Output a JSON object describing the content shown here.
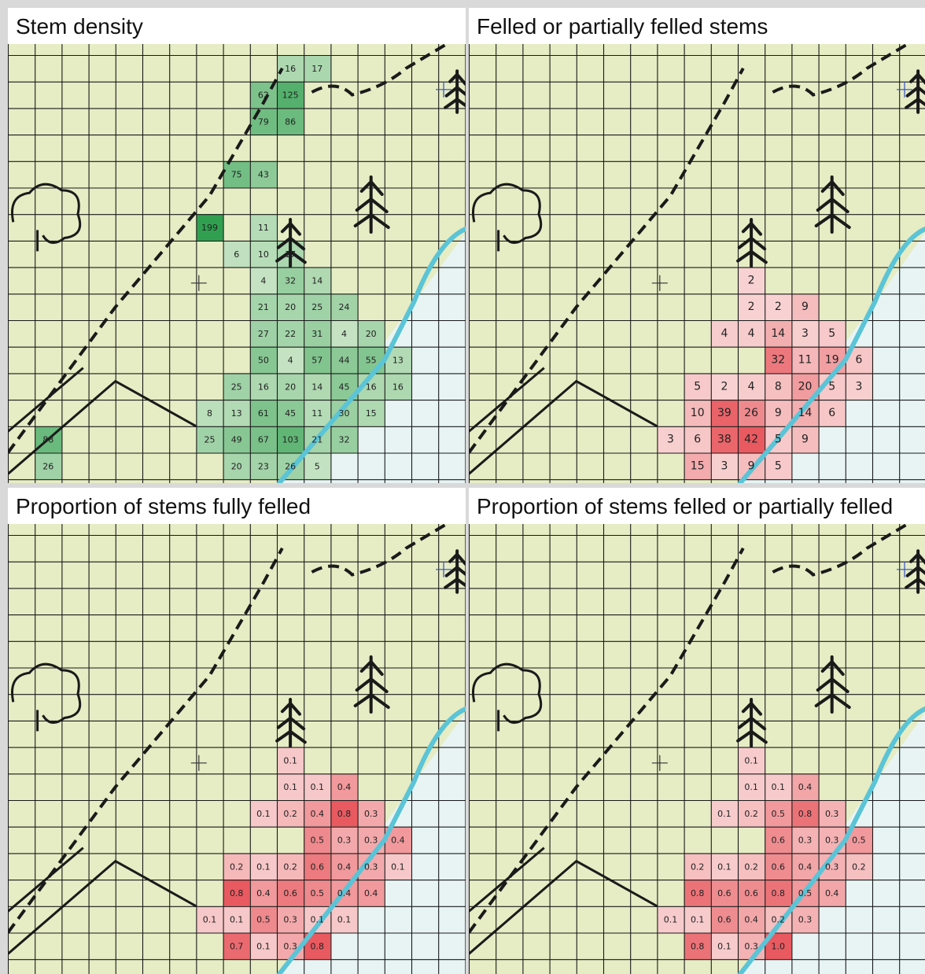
{
  "colors": {
    "map_bg": "#e6ecc4",
    "water": "#e8f4f4",
    "shore": "#5bc4d6",
    "grid": "#1a1a1a",
    "ink": "#1a1a1a"
  },
  "chart_data": [
    {
      "type": "heatmap",
      "title": "Stem density",
      "color_scheme": "green",
      "rows": 16,
      "cols": 17,
      "cells": [
        {
          "r": 0,
          "c": 10,
          "v": "16"
        },
        {
          "r": 0,
          "c": 11,
          "v": "17"
        },
        {
          "r": 1,
          "c": 9,
          "v": "62"
        },
        {
          "r": 1,
          "c": 10,
          "v": "125"
        },
        {
          "r": 2,
          "c": 9,
          "v": "79"
        },
        {
          "r": 2,
          "c": 10,
          "v": "86"
        },
        {
          "r": 4,
          "c": 8,
          "v": "75"
        },
        {
          "r": 4,
          "c": 9,
          "v": "43"
        },
        {
          "r": 6,
          "c": 7,
          "v": "199"
        },
        {
          "r": 6,
          "c": 9,
          "v": "11"
        },
        {
          "r": 7,
          "c": 8,
          "v": "6"
        },
        {
          "r": 7,
          "c": 9,
          "v": "10"
        },
        {
          "r": 7,
          "c": 10,
          "v": "17"
        },
        {
          "r": 8,
          "c": 9,
          "v": "4"
        },
        {
          "r": 8,
          "c": 10,
          "v": "32"
        },
        {
          "r": 8,
          "c": 11,
          "v": "14"
        },
        {
          "r": 9,
          "c": 9,
          "v": "21"
        },
        {
          "r": 9,
          "c": 10,
          "v": "20"
        },
        {
          "r": 9,
          "c": 11,
          "v": "25"
        },
        {
          "r": 9,
          "c": 12,
          "v": "24"
        },
        {
          "r": 10,
          "c": 9,
          "v": "27"
        },
        {
          "r": 10,
          "c": 10,
          "v": "22"
        },
        {
          "r": 10,
          "c": 11,
          "v": "31"
        },
        {
          "r": 10,
          "c": 12,
          "v": "4"
        },
        {
          "r": 10,
          "c": 13,
          "v": "20"
        },
        {
          "r": 11,
          "c": 9,
          "v": "50"
        },
        {
          "r": 11,
          "c": 10,
          "v": "4"
        },
        {
          "r": 11,
          "c": 11,
          "v": "57"
        },
        {
          "r": 11,
          "c": 12,
          "v": "44"
        },
        {
          "r": 11,
          "c": 13,
          "v": "55"
        },
        {
          "r": 11,
          "c": 14,
          "v": "13"
        },
        {
          "r": 12,
          "c": 8,
          "v": "25"
        },
        {
          "r": 12,
          "c": 9,
          "v": "16"
        },
        {
          "r": 12,
          "c": 10,
          "v": "20"
        },
        {
          "r": 12,
          "c": 11,
          "v": "14"
        },
        {
          "r": 12,
          "c": 12,
          "v": "45"
        },
        {
          "r": 12,
          "c": 13,
          "v": "16"
        },
        {
          "r": 12,
          "c": 14,
          "v": "16"
        },
        {
          "r": 13,
          "c": 7,
          "v": "8"
        },
        {
          "r": 13,
          "c": 8,
          "v": "13"
        },
        {
          "r": 13,
          "c": 9,
          "v": "61"
        },
        {
          "r": 13,
          "c": 10,
          "v": "45"
        },
        {
          "r": 13,
          "c": 11,
          "v": "11"
        },
        {
          "r": 13,
          "c": 12,
          "v": "30"
        },
        {
          "r": 13,
          "c": 13,
          "v": "15"
        },
        {
          "r": 14,
          "c": 1,
          "v": "88"
        },
        {
          "r": 14,
          "c": 7,
          "v": "25"
        },
        {
          "r": 14,
          "c": 8,
          "v": "49"
        },
        {
          "r": 14,
          "c": 9,
          "v": "67"
        },
        {
          "r": 14,
          "c": 10,
          "v": "103"
        },
        {
          "r": 14,
          "c": 11,
          "v": "21"
        },
        {
          "r": 14,
          "c": 12,
          "v": "32"
        },
        {
          "r": 15,
          "c": 1,
          "v": "26"
        },
        {
          "r": 15,
          "c": 8,
          "v": "20"
        },
        {
          "r": 15,
          "c": 9,
          "v": "23"
        },
        {
          "r": 15,
          "c": 10,
          "v": "26"
        },
        {
          "r": 15,
          "c": 11,
          "v": "5"
        }
      ]
    },
    {
      "type": "heatmap",
      "title": "Felled or partially felled stems",
      "color_scheme": "red",
      "rows": 16,
      "cols": 17,
      "cells": [
        {
          "r": 8,
          "c": 10,
          "v": "2"
        },
        {
          "r": 9,
          "c": 10,
          "v": "2"
        },
        {
          "r": 9,
          "c": 11,
          "v": "2"
        },
        {
          "r": 9,
          "c": 12,
          "v": "9"
        },
        {
          "r": 10,
          "c": 9,
          "v": "4"
        },
        {
          "r": 10,
          "c": 10,
          "v": "4"
        },
        {
          "r": 10,
          "c": 11,
          "v": "14"
        },
        {
          "r": 10,
          "c": 12,
          "v": "3"
        },
        {
          "r": 10,
          "c": 13,
          "v": "5"
        },
        {
          "r": 11,
          "c": 11,
          "v": "32"
        },
        {
          "r": 11,
          "c": 12,
          "v": "11"
        },
        {
          "r": 11,
          "c": 13,
          "v": "19"
        },
        {
          "r": 11,
          "c": 14,
          "v": "6"
        },
        {
          "r": 12,
          "c": 8,
          "v": "5"
        },
        {
          "r": 12,
          "c": 9,
          "v": "2"
        },
        {
          "r": 12,
          "c": 10,
          "v": "4"
        },
        {
          "r": 12,
          "c": 11,
          "v": "8"
        },
        {
          "r": 12,
          "c": 12,
          "v": "20"
        },
        {
          "r": 12,
          "c": 13,
          "v": "5"
        },
        {
          "r": 12,
          "c": 14,
          "v": "3"
        },
        {
          "r": 13,
          "c": 8,
          "v": "10"
        },
        {
          "r": 13,
          "c": 9,
          "v": "39"
        },
        {
          "r": 13,
          "c": 10,
          "v": "26"
        },
        {
          "r": 13,
          "c": 11,
          "v": "9"
        },
        {
          "r": 13,
          "c": 12,
          "v": "14"
        },
        {
          "r": 13,
          "c": 13,
          "v": "6"
        },
        {
          "r": 14,
          "c": 7,
          "v": "3"
        },
        {
          "r": 14,
          "c": 8,
          "v": "6"
        },
        {
          "r": 14,
          "c": 9,
          "v": "38"
        },
        {
          "r": 14,
          "c": 10,
          "v": "42"
        },
        {
          "r": 14,
          "c": 11,
          "v": "5"
        },
        {
          "r": 14,
          "c": 12,
          "v": "9"
        },
        {
          "r": 15,
          "c": 8,
          "v": "15"
        },
        {
          "r": 15,
          "c": 9,
          "v": "3"
        },
        {
          "r": 15,
          "c": 10,
          "v": "9"
        },
        {
          "r": 15,
          "c": 11,
          "v": "5"
        }
      ]
    },
    {
      "type": "heatmap",
      "title": "Proportion of stems fully felled",
      "color_scheme": "red",
      "rows": 16,
      "cols": 17,
      "cells": [
        {
          "r": 8,
          "c": 10,
          "v": "0.1"
        },
        {
          "r": 9,
          "c": 10,
          "v": "0.1"
        },
        {
          "r": 9,
          "c": 11,
          "v": "0.1"
        },
        {
          "r": 9,
          "c": 12,
          "v": "0.4"
        },
        {
          "r": 10,
          "c": 9,
          "v": "0.1"
        },
        {
          "r": 10,
          "c": 10,
          "v": "0.2"
        },
        {
          "r": 10,
          "c": 11,
          "v": "0.4"
        },
        {
          "r": 10,
          "c": 12,
          "v": "0.8"
        },
        {
          "r": 10,
          "c": 13,
          "v": "0.3"
        },
        {
          "r": 11,
          "c": 11,
          "v": "0.5"
        },
        {
          "r": 11,
          "c": 12,
          "v": "0.3"
        },
        {
          "r": 11,
          "c": 13,
          "v": "0.3"
        },
        {
          "r": 11,
          "c": 14,
          "v": "0.4"
        },
        {
          "r": 12,
          "c": 8,
          "v": "0.2"
        },
        {
          "r": 12,
          "c": 9,
          "v": "0.1"
        },
        {
          "r": 12,
          "c": 10,
          "v": "0.2"
        },
        {
          "r": 12,
          "c": 11,
          "v": "0.6"
        },
        {
          "r": 12,
          "c": 12,
          "v": "0.4"
        },
        {
          "r": 12,
          "c": 13,
          "v": "0.3"
        },
        {
          "r": 12,
          "c": 14,
          "v": "0.1"
        },
        {
          "r": 13,
          "c": 8,
          "v": "0.8"
        },
        {
          "r": 13,
          "c": 9,
          "v": "0.4"
        },
        {
          "r": 13,
          "c": 10,
          "v": "0.6"
        },
        {
          "r": 13,
          "c": 11,
          "v": "0.5"
        },
        {
          "r": 13,
          "c": 12,
          "v": "0.4"
        },
        {
          "r": 13,
          "c": 13,
          "v": "0.4"
        },
        {
          "r": 14,
          "c": 7,
          "v": "0.1"
        },
        {
          "r": 14,
          "c": 8,
          "v": "0.1"
        },
        {
          "r": 14,
          "c": 9,
          "v": "0.5"
        },
        {
          "r": 14,
          "c": 10,
          "v": "0.3"
        },
        {
          "r": 14,
          "c": 11,
          "v": "0.1"
        },
        {
          "r": 14,
          "c": 12,
          "v": "0.1"
        },
        {
          "r": 15,
          "c": 8,
          "v": "0.7"
        },
        {
          "r": 15,
          "c": 9,
          "v": "0.1"
        },
        {
          "r": 15,
          "c": 10,
          "v": "0.3"
        },
        {
          "r": 15,
          "c": 11,
          "v": "0.8"
        }
      ]
    },
    {
      "type": "heatmap",
      "title": "Proportion of stems felled or partially felled",
      "color_scheme": "red",
      "rows": 16,
      "cols": 17,
      "cells": [
        {
          "r": 8,
          "c": 10,
          "v": "0.1"
        },
        {
          "r": 9,
          "c": 10,
          "v": "0.1"
        },
        {
          "r": 9,
          "c": 11,
          "v": "0.1"
        },
        {
          "r": 9,
          "c": 12,
          "v": "0.4"
        },
        {
          "r": 10,
          "c": 9,
          "v": "0.1"
        },
        {
          "r": 10,
          "c": 10,
          "v": "0.2"
        },
        {
          "r": 10,
          "c": 11,
          "v": "0.5"
        },
        {
          "r": 10,
          "c": 12,
          "v": "0.8"
        },
        {
          "r": 10,
          "c": 13,
          "v": "0.3"
        },
        {
          "r": 11,
          "c": 11,
          "v": "0.6"
        },
        {
          "r": 11,
          "c": 12,
          "v": "0.3"
        },
        {
          "r": 11,
          "c": 13,
          "v": "0.3"
        },
        {
          "r": 11,
          "c": 14,
          "v": "0.5"
        },
        {
          "r": 12,
          "c": 8,
          "v": "0.2"
        },
        {
          "r": 12,
          "c": 9,
          "v": "0.1"
        },
        {
          "r": 12,
          "c": 10,
          "v": "0.2"
        },
        {
          "r": 12,
          "c": 11,
          "v": "0.6"
        },
        {
          "r": 12,
          "c": 12,
          "v": "0.4"
        },
        {
          "r": 12,
          "c": 13,
          "v": "0.3"
        },
        {
          "r": 12,
          "c": 14,
          "v": "0.2"
        },
        {
          "r": 13,
          "c": 8,
          "v": "0.8"
        },
        {
          "r": 13,
          "c": 9,
          "v": "0.6"
        },
        {
          "r": 13,
          "c": 10,
          "v": "0.6"
        },
        {
          "r": 13,
          "c": 11,
          "v": "0.8"
        },
        {
          "r": 13,
          "c": 12,
          "v": "0.5"
        },
        {
          "r": 13,
          "c": 13,
          "v": "0.4"
        },
        {
          "r": 14,
          "c": 7,
          "v": "0.1"
        },
        {
          "r": 14,
          "c": 8,
          "v": "0.1"
        },
        {
          "r": 14,
          "c": 9,
          "v": "0.6"
        },
        {
          "r": 14,
          "c": 10,
          "v": "0.4"
        },
        {
          "r": 14,
          "c": 11,
          "v": "0.2"
        },
        {
          "r": 14,
          "c": 12,
          "v": "0.3"
        },
        {
          "r": 15,
          "c": 8,
          "v": "0.8"
        },
        {
          "r": 15,
          "c": 9,
          "v": "0.1"
        },
        {
          "r": 15,
          "c": 10,
          "v": "0.3"
        },
        {
          "r": 15,
          "c": 11,
          "v": "1.0"
        }
      ]
    }
  ]
}
